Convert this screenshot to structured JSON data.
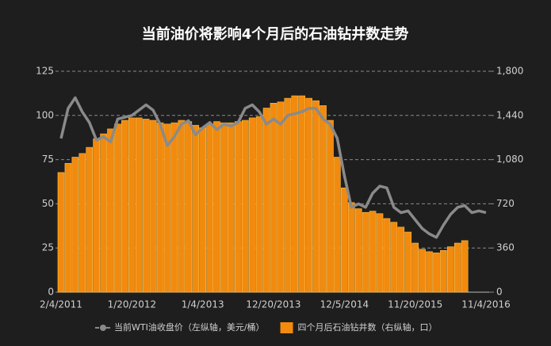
{
  "chart_data": {
    "type": "bar-line",
    "title": "当前油价将影响4个月后的石油钻井数走势",
    "categories": [
      "2/4/2011",
      null,
      null,
      null,
      null,
      null,
      null,
      null,
      null,
      null,
      "1/20/2012",
      null,
      null,
      null,
      null,
      null,
      null,
      null,
      null,
      null,
      "1/4/2013",
      null,
      null,
      null,
      null,
      null,
      null,
      null,
      null,
      null,
      "12/20/2013",
      null,
      null,
      null,
      null,
      null,
      null,
      null,
      null,
      null,
      "12/5/2014",
      null,
      null,
      null,
      null,
      null,
      null,
      null,
      null,
      null,
      "11/20/2015",
      null,
      null,
      null,
      null,
      null,
      null,
      null,
      null,
      null,
      "11/4/2016"
    ],
    "series": [
      {
        "name": "当前WTI油收盘价（左纵轴，美元/桶）",
        "type": "line",
        "color": "#8a8a8a",
        "values": [
          87,
          104,
          110,
          102,
          96,
          86,
          88,
          85,
          98,
          99,
          100,
          103,
          106,
          103,
          95,
          83,
          88,
          95,
          97,
          89,
          93,
          96,
          92,
          95,
          94,
          96,
          104,
          106,
          102,
          95,
          98,
          95,
          100,
          101,
          102,
          104,
          104,
          98,
          95,
          87,
          66,
          48,
          50,
          48,
          56,
          60,
          59,
          48,
          45,
          46,
          41,
          36,
          33,
          31,
          38,
          44,
          48,
          49,
          45,
          46,
          45
        ]
      },
      {
        "name": "四个月后石油钻井数（右纵轴，口）",
        "type": "bar",
        "axis": "y2",
        "color": "#f28a0e",
        "values": [
          975,
          1050,
          1100,
          1130,
          1180,
          1250,
          1290,
          1330,
          1370,
          1400,
          1420,
          1420,
          1410,
          1400,
          1380,
          1370,
          1380,
          1400,
          1390,
          1360,
          1340,
          1370,
          1390,
          1380,
          1380,
          1390,
          1400,
          1420,
          1430,
          1500,
          1540,
          1550,
          1580,
          1600,
          1600,
          1580,
          1560,
          1520,
          1400,
          1100,
          850,
          730,
          680,
          650,
          660,
          640,
          600,
          570,
          530,
          490,
          400,
          350,
          330,
          320,
          340,
          370,
          400,
          420,
          null,
          null,
          null
        ]
      }
    ],
    "ylim": [
      0,
      125
    ],
    "yticks": [
      0,
      25,
      50,
      75,
      100,
      125
    ],
    "y2lim": [
      0,
      1800
    ],
    "y2ticks": [
      0,
      360,
      720,
      {
        "value": 1080,
        "label": "1,080"
      },
      {
        "value": 1440,
        "label": "1,440"
      },
      {
        "value": 1800,
        "label": "1,800"
      }
    ],
    "grid": true,
    "legend": "bottom"
  }
}
